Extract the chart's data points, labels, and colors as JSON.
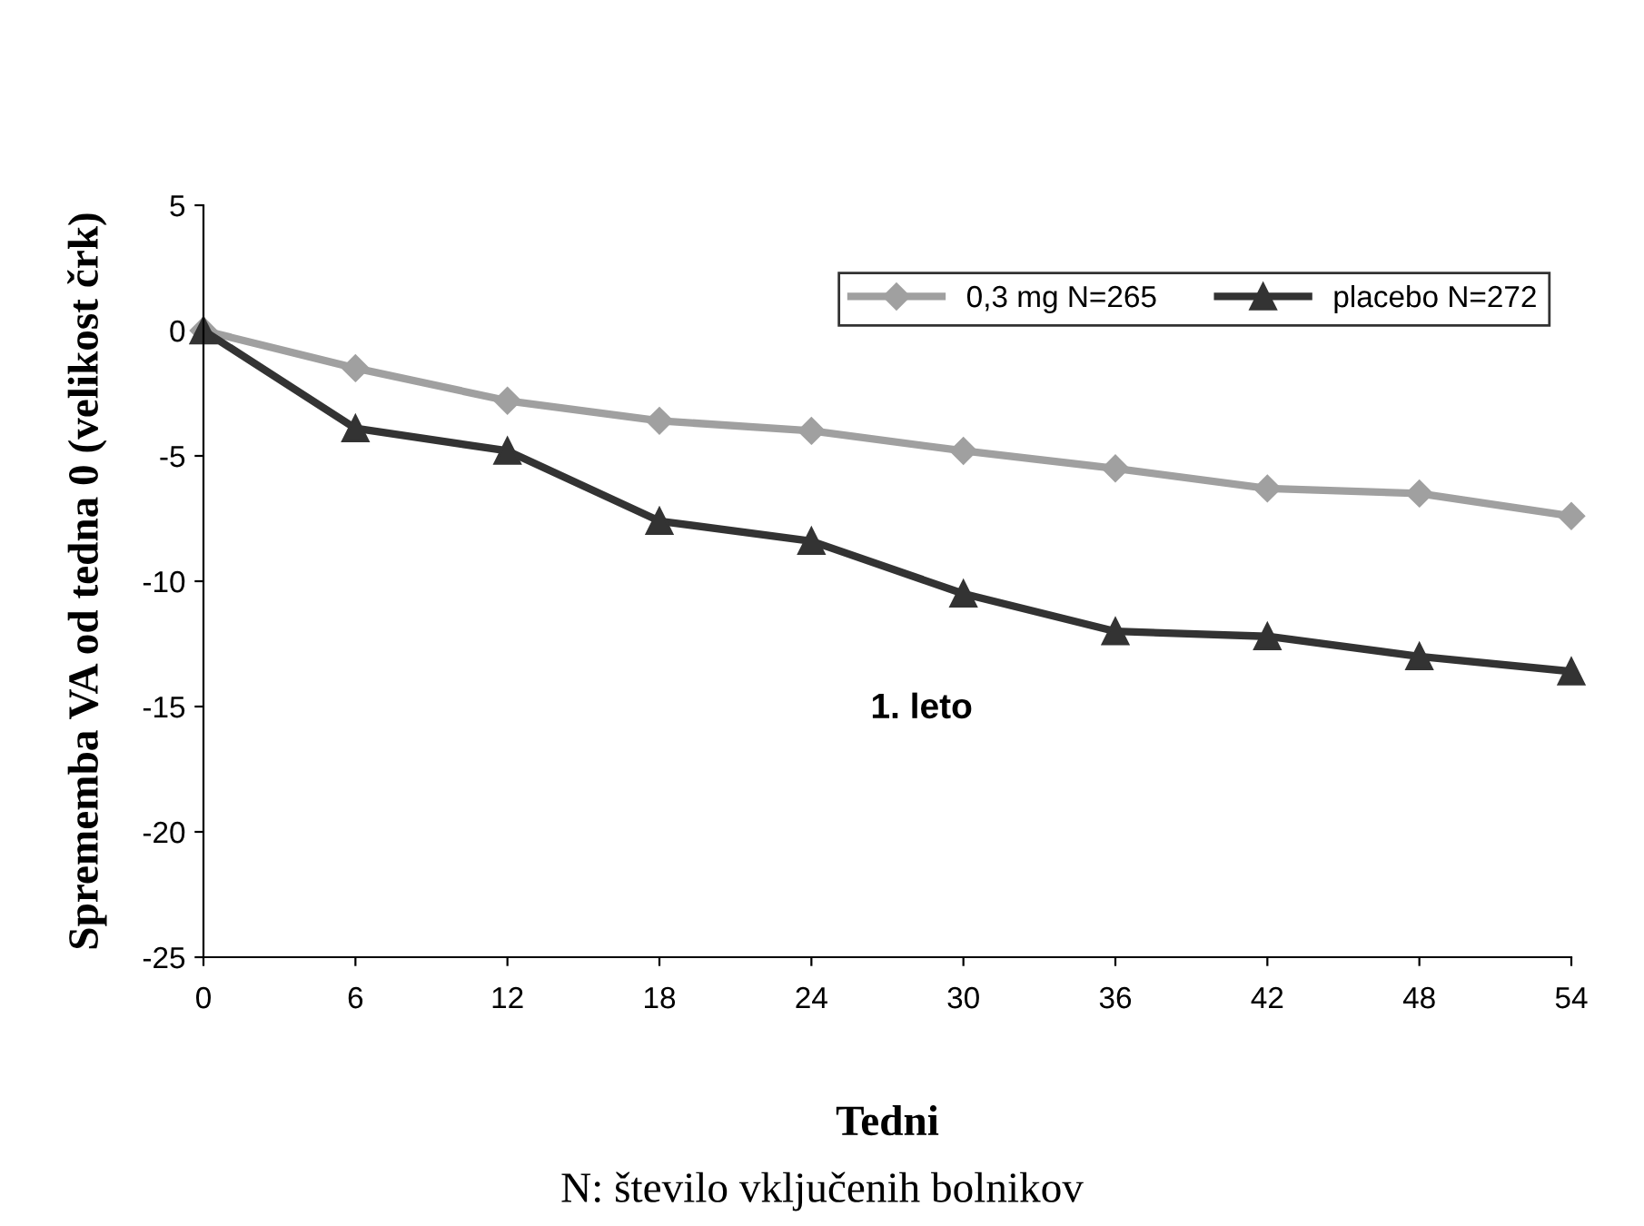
{
  "chart_data": {
    "type": "line",
    "xlabel": "Tedni",
    "ylabel": "Sprememba VA od tedna 0 (velikost črk)",
    "x": [
      0,
      6,
      12,
      18,
      24,
      30,
      36,
      42,
      48,
      54
    ],
    "xlim": [
      0,
      54
    ],
    "xticks": [
      0,
      6,
      12,
      18,
      24,
      30,
      36,
      42,
      48,
      54
    ],
    "ylim": [
      -25,
      5
    ],
    "yticks": [
      -25,
      -20,
      -15,
      -10,
      -5,
      0,
      5
    ],
    "series": [
      {
        "name": "0,3 mg N=265",
        "color": "#a0a0a0",
        "marker": "diamond",
        "values": [
          0,
          -1.5,
          -2.8,
          -3.6,
          -4.0,
          -4.8,
          -5.5,
          -6.3,
          -6.5,
          -7.4
        ]
      },
      {
        "name": "placebo N=272",
        "color": "#333333",
        "marker": "triangle",
        "values": [
          0,
          -3.9,
          -4.8,
          -7.6,
          -8.4,
          -10.5,
          -12.0,
          -12.2,
          -13.0,
          -13.6
        ]
      }
    ],
    "annotations": [
      "1. leto",
      "N: število vključenih bolnikov"
    ],
    "grid": false,
    "legend": "top right"
  }
}
